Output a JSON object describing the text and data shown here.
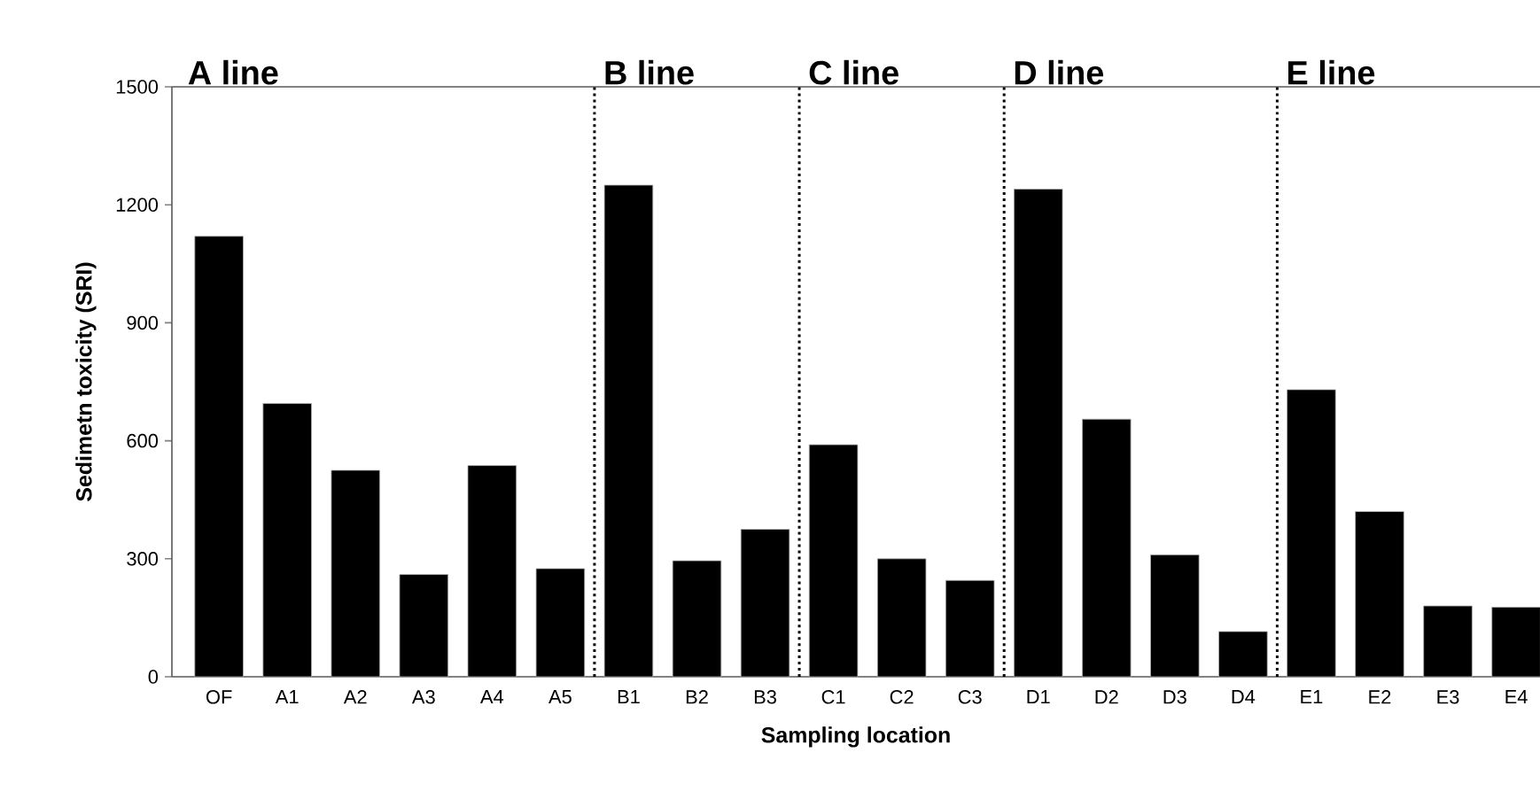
{
  "chart_data": {
    "type": "bar",
    "xlabel": "Sampling location",
    "ylabel": "Sedimetn toxicity (SRI)",
    "categories": [
      "OF",
      "A1",
      "A2",
      "A3",
      "A4",
      "A5",
      "B1",
      "B2",
      "B3",
      "C1",
      "C2",
      "C3",
      "D1",
      "D2",
      "D3",
      "D4",
      "E1",
      "E2",
      "E3",
      "E4"
    ],
    "values": [
      1120,
      695,
      525,
      260,
      537,
      275,
      1250,
      295,
      375,
      590,
      300,
      245,
      1240,
      655,
      310,
      115,
      730,
      420,
      180,
      177
    ],
    "color": "#000000",
    "ylim": [
      0,
      1500
    ],
    "yticks": [
      0,
      300,
      600,
      900,
      1200,
      1500
    ],
    "annotations": [
      "A line",
      "B line",
      "C line",
      "D line",
      "E line"
    ],
    "grid": false
  }
}
